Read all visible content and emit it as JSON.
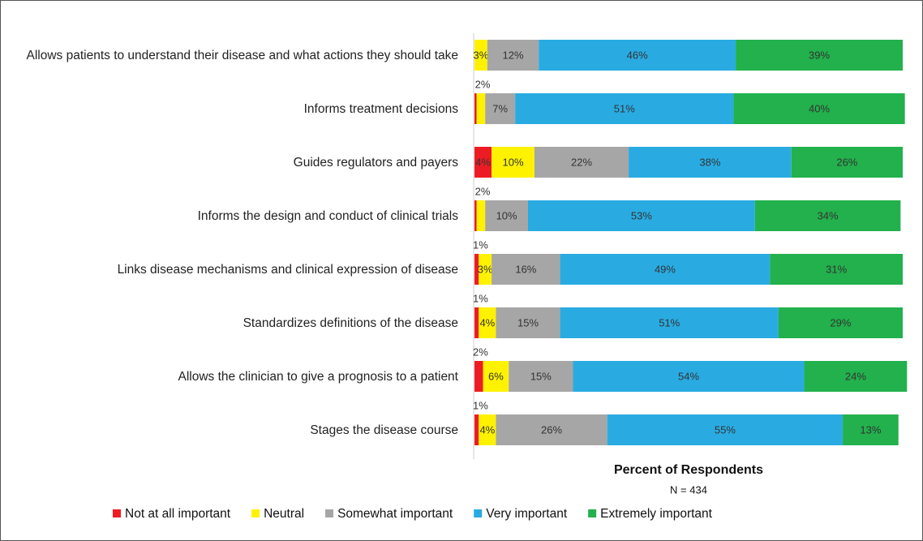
{
  "chart_data": {
    "type": "stacked_bar_horizontal",
    "categories": [
      "Allows patients to understand their disease and what actions they should take",
      "Informs treatment decisions",
      "Guides regulators and payers",
      "Informs the design and conduct of clinical trials",
      "Links disease mechanisms and clinical expression of disease",
      "Standardizes definitions of the disease",
      "Allows the clinician to give a prognosis to a patient",
      "Stages the disease course"
    ],
    "series": [
      {
        "name": "Not at all important",
        "color": "#ed1c24",
        "values": [
          0,
          0.5,
          4,
          0.5,
          1,
          1,
          2,
          1
        ],
        "value_labels": [
          null,
          null,
          "4%",
          null,
          "1%",
          "1%",
          "2%",
          "1%"
        ]
      },
      {
        "name": "Neutral",
        "color": "#fff200",
        "values": [
          3,
          2,
          10,
          2,
          3,
          4,
          6,
          4
        ],
        "value_labels": [
          "3%",
          "2%",
          "10%",
          "2%",
          "3%",
          "4%",
          "6%",
          "4%"
        ]
      },
      {
        "name": "Somewhat important",
        "color": "#a6a6a6",
        "values": [
          12,
          7,
          22,
          10,
          16,
          15,
          15,
          26
        ],
        "value_labels": [
          "12%",
          "7%",
          "22%",
          "10%",
          "16%",
          "15%",
          "15%",
          "26%"
        ]
      },
      {
        "name": "Very important",
        "color": "#29abe2",
        "values": [
          46,
          51,
          38,
          53,
          49,
          51,
          54,
          55
        ],
        "value_labels": [
          "46%",
          "51%",
          "38%",
          "53%",
          "49%",
          "51%",
          "54%",
          "55%"
        ]
      },
      {
        "name": "Extremely important",
        "color": "#22b14c",
        "values": [
          39,
          40,
          26,
          34,
          31,
          29,
          24,
          13
        ],
        "value_labels": [
          "39%",
          "40%",
          "26%",
          "34%",
          "31%",
          "29%",
          "24%",
          "13%"
        ]
      }
    ],
    "xlim": [
      0,
      100
    ],
    "x_label": "Percent of Respondents",
    "note": "N = 434"
  }
}
